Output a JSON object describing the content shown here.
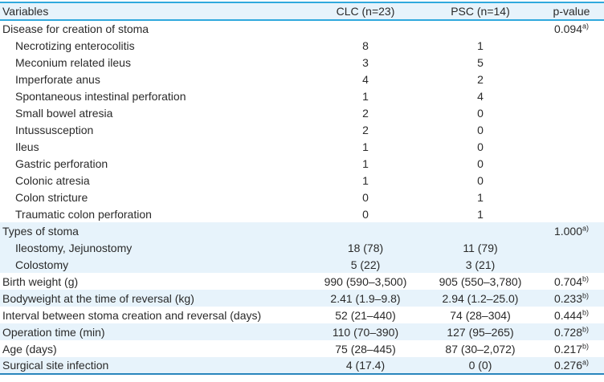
{
  "table": {
    "columns": [
      {
        "label": "Variables"
      },
      {
        "label": "CLC (n=23)"
      },
      {
        "label": "PSC (n=14)"
      },
      {
        "label": "p-value"
      }
    ],
    "rows": [
      {
        "label": "Disease for creation of stoma",
        "indent": false,
        "band": "white",
        "clc": "",
        "psc": "",
        "p": "0.094",
        "p_sup": "a)"
      },
      {
        "label": "Necrotizing enterocolitis",
        "indent": true,
        "band": "white",
        "clc": "8",
        "psc": "1",
        "p": "",
        "p_sup": ""
      },
      {
        "label": "Meconium related ileus",
        "indent": true,
        "band": "white",
        "clc": "3",
        "psc": "5",
        "p": "",
        "p_sup": ""
      },
      {
        "label": "Imperforate anus",
        "indent": true,
        "band": "white",
        "clc": "4",
        "psc": "2",
        "p": "",
        "p_sup": ""
      },
      {
        "label": "Spontaneous intestinal perforation",
        "indent": true,
        "band": "white",
        "clc": "1",
        "psc": "4",
        "p": "",
        "p_sup": ""
      },
      {
        "label": "Small bowel atresia",
        "indent": true,
        "band": "white",
        "clc": "2",
        "psc": "0",
        "p": "",
        "p_sup": ""
      },
      {
        "label": "Intussusception",
        "indent": true,
        "band": "white",
        "clc": "2",
        "psc": "0",
        "p": "",
        "p_sup": ""
      },
      {
        "label": "Ileus",
        "indent": true,
        "band": "white",
        "clc": "1",
        "psc": "0",
        "p": "",
        "p_sup": ""
      },
      {
        "label": "Gastric perforation",
        "indent": true,
        "band": "white",
        "clc": "1",
        "psc": "0",
        "p": "",
        "p_sup": ""
      },
      {
        "label": "Colonic atresia",
        "indent": true,
        "band": "white",
        "clc": "1",
        "psc": "0",
        "p": "",
        "p_sup": ""
      },
      {
        "label": "Colon stricture",
        "indent": true,
        "band": "white",
        "clc": "0",
        "psc": "1",
        "p": "",
        "p_sup": ""
      },
      {
        "label": "Traumatic colon perforation",
        "indent": true,
        "band": "white",
        "clc": "0",
        "psc": "1",
        "p": "",
        "p_sup": ""
      },
      {
        "label": "Types of stoma",
        "indent": false,
        "band": "blue",
        "clc": "",
        "psc": "",
        "p": "1.000",
        "p_sup": "a)"
      },
      {
        "label": "Ileostomy, Jejunostomy",
        "indent": true,
        "band": "blue",
        "clc": "18 (78)",
        "psc": "11 (79)",
        "p": "",
        "p_sup": ""
      },
      {
        "label": "Colostomy",
        "indent": true,
        "band": "blue",
        "clc": "5 (22)",
        "psc": "3 (21)",
        "p": "",
        "p_sup": ""
      },
      {
        "label": "Birth weight (g)",
        "indent": false,
        "band": "white",
        "clc": "990 (590–3,500)",
        "psc": "905 (550–3,780)",
        "p": "0.704",
        "p_sup": "b)"
      },
      {
        "label": "Bodyweight at the time of reversal (kg)",
        "indent": false,
        "band": "blue",
        "clc": "2.41 (1.9–9.8)",
        "psc": "2.94 (1.2–25.0)",
        "p": "0.233",
        "p_sup": "b)"
      },
      {
        "label": "Interval between stoma creation and reversal (days)",
        "indent": false,
        "band": "white",
        "clc": "52 (21–440)",
        "psc": "74 (28–304)",
        "p": "0.444",
        "p_sup": "b)"
      },
      {
        "label": "Operation time (min)",
        "indent": false,
        "band": "blue",
        "clc": "110 (70–390)",
        "psc": "127 (95–265)",
        "p": "0.728",
        "p_sup": "b)"
      },
      {
        "label": "Age (days)",
        "indent": false,
        "band": "white",
        "clc": "75 (28–445)",
        "psc": "87 (30–2,072)",
        "p": "0.217",
        "p_sup": "b)"
      },
      {
        "label": "Surgical site infection",
        "indent": false,
        "band": "blue",
        "clc": "4 (17.4)",
        "psc": "0 (0)",
        "p": "0.276",
        "p_sup": "a)"
      }
    ],
    "colors": {
      "header_bg": "#e7f3fb",
      "band_bg": "#e7f3fb",
      "border_top": "#2fa9dd",
      "border_bottom": "#2a86bd",
      "text": "#2a2a2a"
    }
  }
}
